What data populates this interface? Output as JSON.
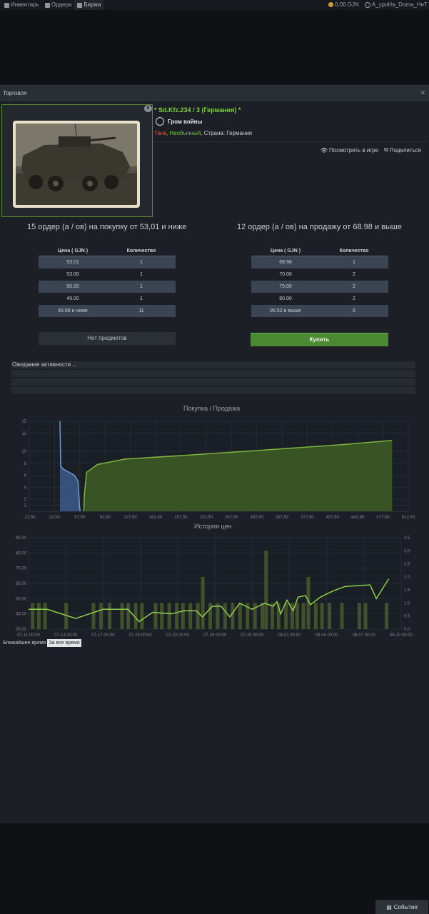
{
  "nav": {
    "tabs": [
      {
        "label": "Инвентарь",
        "icon": "inventory-icon"
      },
      {
        "label": "Ордера",
        "icon": "orders-icon"
      },
      {
        "label": "Биржа",
        "icon": "exchange-icon",
        "active": true
      }
    ],
    "balance": "0,00 GJN",
    "username": "A_уроНа_Doma_HeT"
  },
  "panel": {
    "title": "Торговля"
  },
  "item": {
    "count_badge": "0",
    "name": "* Sd.Kfz.234 / 3 (Германия) *",
    "game": "Гром войны",
    "type": "Танк",
    "rarity": "Необычный",
    "country": "Страна: Германия",
    "view_in_game": "Посмотреть в игре",
    "share": "Поделиться"
  },
  "buy_orders": {
    "summary": "15 ордер (а / ов) на покупку от 53,01 и ниже",
    "headers": [
      "Цена ( GJN )",
      "Количество"
    ],
    "rows": [
      {
        "price": "53.01",
        "qty": "1"
      },
      {
        "price": "53.00",
        "qty": "1"
      },
      {
        "price": "50.00",
        "qty": "1"
      },
      {
        "price": "49.00",
        "qty": "1"
      },
      {
        "price": "48.98 и ниже",
        "qty": "11"
      }
    ],
    "no_items": "Нет предметов"
  },
  "sell_orders": {
    "summary": "12 ордер (а / ов) на продажу от 68.98 и выше",
    "headers": [
      "Цена ( GJN )",
      "Количество"
    ],
    "rows": [
      {
        "price": "68.98",
        "qty": "1"
      },
      {
        "price": "70.00",
        "qty": "2"
      },
      {
        "price": "75.00",
        "qty": "2"
      },
      {
        "price": "80.00",
        "qty": "2"
      },
      {
        "price": "95.52 и выше",
        "qty": "5"
      }
    ],
    "buy_label": "Купить"
  },
  "activity": {
    "text": "Ожидание активности ..."
  },
  "chart_data": [
    {
      "type": "area",
      "title": "Покупка / Продажа",
      "x_ticks": [
        "-12,50",
        "22,50",
        "57,50",
        "92,50",
        "127,50",
        "162,50",
        "197,50",
        "232,50",
        "267,50",
        "302,50",
        "337,50",
        "372,50",
        "407,50",
        "442,50",
        "477,50",
        "512,50"
      ],
      "y_ticks": [
        "1",
        "2",
        "4",
        "6",
        "8",
        "10",
        "13",
        "15"
      ],
      "xlim": [
        -12.5,
        512.5
      ],
      "ylim": [
        0,
        15
      ],
      "series": [
        {
          "side": "buy",
          "color": "#6f9ad8",
          "points": [
            [
              30,
              15
            ],
            [
              31,
              7.5
            ],
            [
              35,
              7
            ],
            [
              50,
              6
            ],
            [
              55,
              5
            ],
            [
              57,
              1
            ],
            [
              58,
              0
            ]
          ]
        },
        {
          "side": "sell",
          "color": "#7fb33f",
          "points": [
            [
              63,
              0
            ],
            [
              64,
              3
            ],
            [
              67,
              6.5
            ],
            [
              82,
              7.8
            ],
            [
              120,
              8.7
            ],
            [
              200,
              9.3
            ],
            [
              300,
              10.1
            ],
            [
              420,
              11.1
            ],
            [
              490,
              11.8
            ]
          ]
        }
      ]
    },
    {
      "type": "line",
      "title": "История цен",
      "x_ticks": [
        "07-11 00:00",
        "07-14 00:00",
        "07-17 00:00",
        "07-20 00:00",
        "07-23 00:00",
        "07-26 00:00",
        "07-29 00:00",
        "08-01 00:00",
        "08-04 00:00",
        "08-07 00:00",
        "08-10 00:00"
      ],
      "y_left_ticks": [
        "35.00",
        "45.00",
        "55.00",
        "65.00",
        "75.00",
        "85.00",
        "95.00"
      ],
      "y_right_ticks": [
        "0.0",
        "0.5",
        "1.0",
        "1.5",
        "2.0",
        "2.5",
        "3.0",
        "3.5"
      ],
      "ylim_left": [
        35,
        95
      ],
      "ylim_right": [
        0,
        3.5
      ],
      "xlim": [
        0,
        30
      ],
      "price_series": [
        [
          0,
          48
        ],
        [
          1.5,
          48
        ],
        [
          3.8,
          42
        ],
        [
          6,
          48
        ],
        [
          8,
          48
        ],
        [
          8.9,
          40
        ],
        [
          10,
          46
        ],
        [
          11.5,
          45
        ],
        [
          12.5,
          47
        ],
        [
          13.5,
          47
        ],
        [
          14,
          43
        ],
        [
          14.8,
          50
        ],
        [
          15.5,
          50
        ],
        [
          16.2,
          43
        ],
        [
          17,
          52
        ],
        [
          18,
          48
        ],
        [
          19,
          52
        ],
        [
          19.7,
          50
        ],
        [
          20,
          53
        ],
        [
          20.3,
          45
        ],
        [
          20.8,
          54
        ],
        [
          21.3,
          47
        ],
        [
          21.7,
          56
        ],
        [
          22.3,
          57
        ],
        [
          22.7,
          51
        ],
        [
          23.5,
          56
        ],
        [
          24.5,
          60
        ],
        [
          25.5,
          63
        ],
        [
          27.5,
          64
        ],
        [
          28,
          55
        ],
        [
          29,
          68
        ]
      ],
      "volume_bars": [
        [
          0.3,
          1
        ],
        [
          0.8,
          1
        ],
        [
          1.3,
          1
        ],
        [
          3.0,
          1
        ],
        [
          5.2,
          1
        ],
        [
          5.8,
          1
        ],
        [
          6.5,
          1
        ],
        [
          7.5,
          1
        ],
        [
          8.0,
          1
        ],
        [
          8.6,
          1
        ],
        [
          9.1,
          1
        ],
        [
          10.2,
          1
        ],
        [
          10.7,
          1
        ],
        [
          11.3,
          1
        ],
        [
          11.9,
          1
        ],
        [
          12.4,
          1
        ],
        [
          13.0,
          1
        ],
        [
          13.6,
          1
        ],
        [
          14.0,
          2
        ],
        [
          14.6,
          1
        ],
        [
          15.2,
          1
        ],
        [
          15.8,
          1
        ],
        [
          16.4,
          1
        ],
        [
          17.0,
          1
        ],
        [
          17.6,
          1
        ],
        [
          18.2,
          1
        ],
        [
          18.8,
          1
        ],
        [
          19.1,
          3
        ],
        [
          19.6,
          1
        ],
        [
          20.1,
          1
        ],
        [
          20.7,
          1
        ],
        [
          21.2,
          1
        ],
        [
          21.6,
          1
        ],
        [
          22.1,
          1
        ],
        [
          22.5,
          2
        ],
        [
          23.1,
          1
        ],
        [
          23.6,
          1
        ],
        [
          24.2,
          1
        ],
        [
          25.2,
          1
        ],
        [
          26.6,
          1
        ],
        [
          27.1,
          1
        ],
        [
          28.8,
          1
        ]
      ]
    }
  ],
  "range": {
    "recent": "Ближайшее время",
    "all": "За все время"
  },
  "events": {
    "label": "События"
  }
}
